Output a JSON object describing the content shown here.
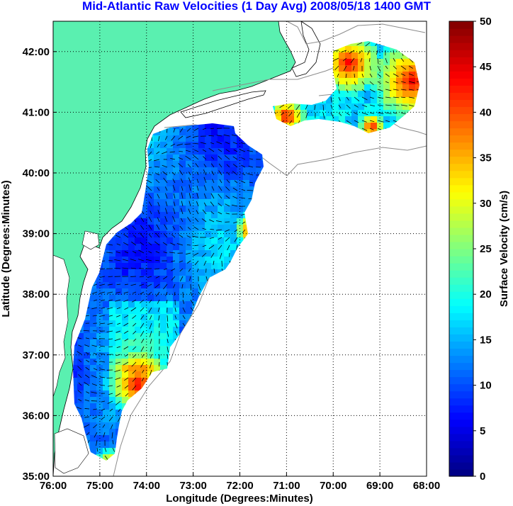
{
  "chart_data": {
    "type": "heatmap",
    "title": "Mid-Atlantic Raw Velocities (1 Day Avg) 2008/05/18 1400 GMT",
    "xlabel": "Longitude (Degrees:Minutes)",
    "ylabel": "Latitude (Degrees:Minutes)",
    "colorbar_label": "Surface Velocity (cm/s)",
    "xlim": [
      -76,
      -68
    ],
    "ylim": [
      35,
      42.5
    ],
    "clim": [
      0,
      50
    ],
    "x_ticks": [
      {
        "value": -76,
        "label": "76:00"
      },
      {
        "value": -75,
        "label": "75:00"
      },
      {
        "value": -74,
        "label": "74:00"
      },
      {
        "value": -73,
        "label": "73:00"
      },
      {
        "value": -72,
        "label": "72:00"
      },
      {
        "value": -71,
        "label": "71:00"
      },
      {
        "value": -70,
        "label": "70:00"
      },
      {
        "value": -69,
        "label": "69:00"
      },
      {
        "value": -68,
        "label": "68:00"
      }
    ],
    "y_ticks": [
      {
        "value": 35,
        "label": "35:00"
      },
      {
        "value": 36,
        "label": "36:00"
      },
      {
        "value": 37,
        "label": "37:00"
      },
      {
        "value": 38,
        "label": "38:00"
      },
      {
        "value": 39,
        "label": "39:00"
      },
      {
        "value": 40,
        "label": "40:00"
      },
      {
        "value": 41,
        "label": "41:00"
      },
      {
        "value": 42,
        "label": "42:00"
      }
    ],
    "colorbar_ticks": [
      {
        "value": 0,
        "label": "0"
      },
      {
        "value": 5,
        "label": "5"
      },
      {
        "value": 10,
        "label": "10"
      },
      {
        "value": 15,
        "label": "15"
      },
      {
        "value": 20,
        "label": "20"
      },
      {
        "value": 25,
        "label": "25"
      },
      {
        "value": 30,
        "label": "30"
      },
      {
        "value": 35,
        "label": "35"
      },
      {
        "value": 40,
        "label": "40"
      },
      {
        "value": 45,
        "label": "45"
      },
      {
        "value": 50,
        "label": "50"
      }
    ],
    "grid": true,
    "grid_style": "dotted",
    "land_color": "#5af0b0",
    "colormap": "jet"
  }
}
